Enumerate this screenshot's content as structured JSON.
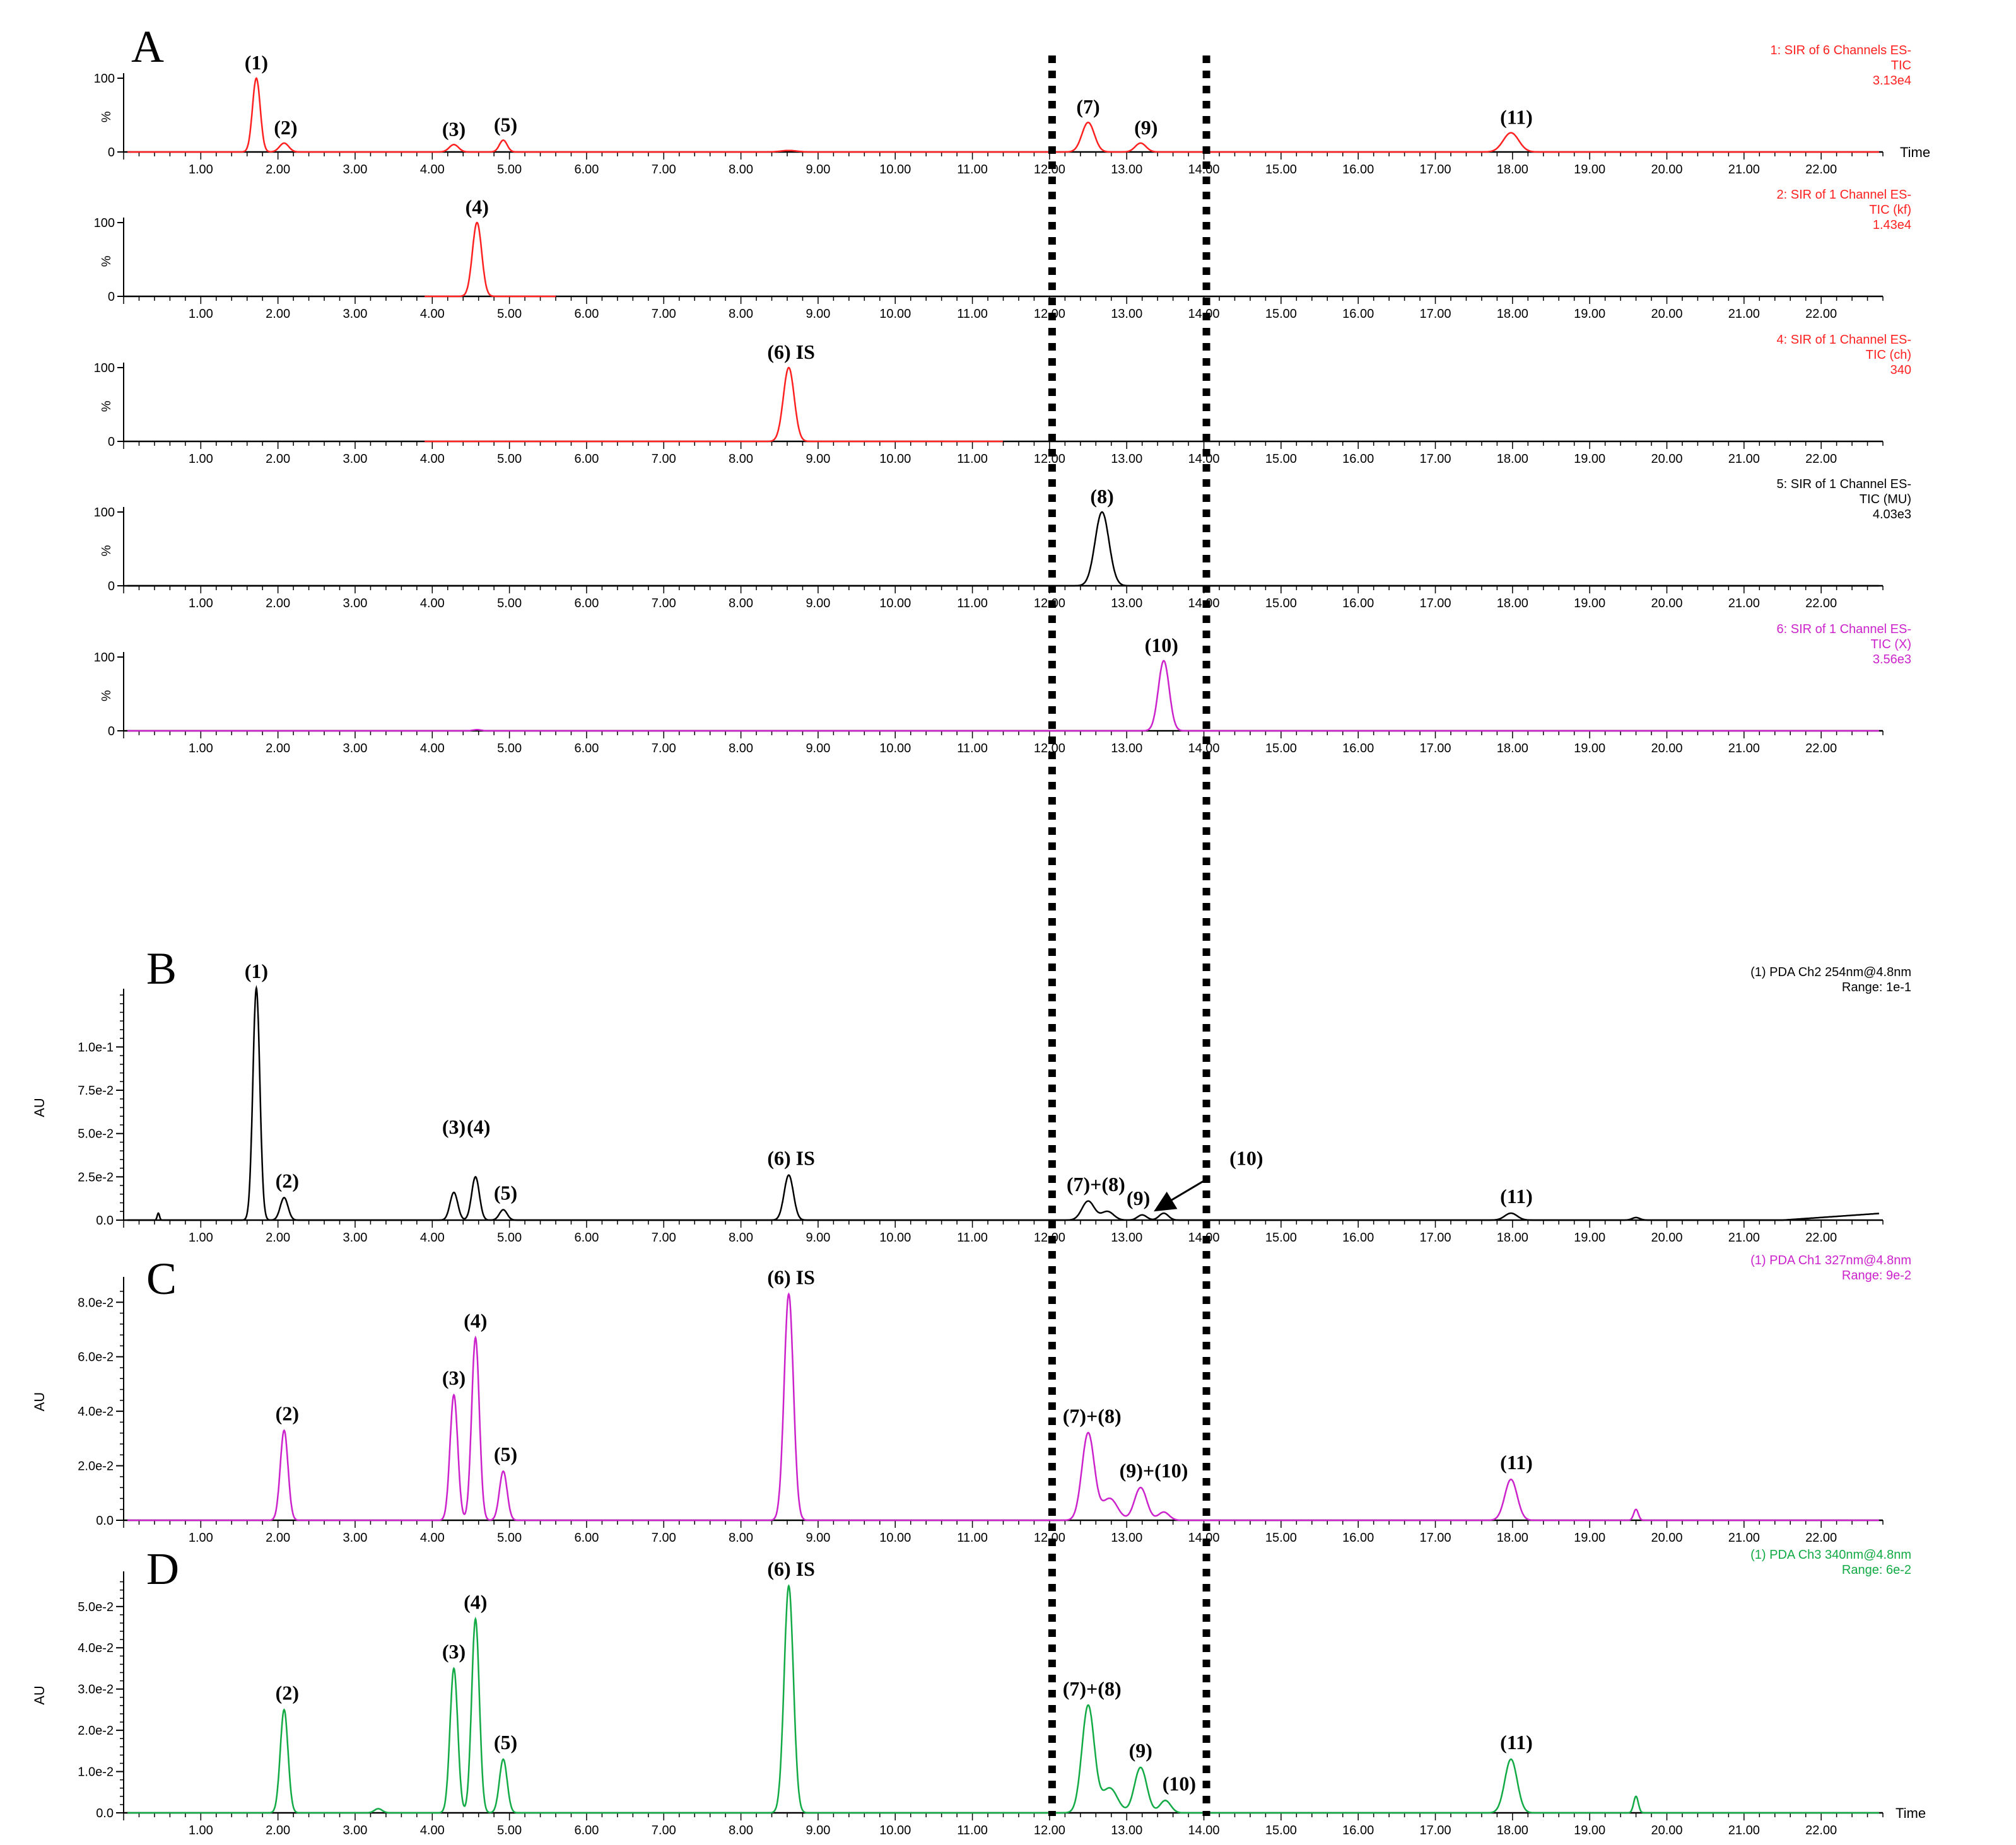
{
  "chart_data": [
    {
      "panel": "A",
      "type": "line",
      "subplots": [
        {
          "id": "A1",
          "color": "#ff2020",
          "legend": [
            "1: SIR of 6 Channels ES-",
            "TIC",
            "3.13e4"
          ],
          "show_time_label": true,
          "time_label": "Time",
          "ylim": [
            0,
            100
          ],
          "yticks": [
            {
              "v": 100,
              "label": "100"
            },
            {
              "v": 0,
              "label": "0"
            }
          ],
          "ylabel_mid": "%",
          "peaks": [
            {
              "t": 1.72,
              "h": 100,
              "w": 0.05
            },
            {
              "t": 2.08,
              "h": 12,
              "w": 0.06
            },
            {
              "t": 4.28,
              "h": 10,
              "w": 0.06
            },
            {
              "t": 4.92,
              "h": 16,
              "w": 0.05
            },
            {
              "t": 8.62,
              "h": 2,
              "w": 0.1
            },
            {
              "t": 12.5,
              "h": 40,
              "w": 0.08
            },
            {
              "t": 13.18,
              "h": 12,
              "w": 0.07
            },
            {
              "t": 17.98,
              "h": 26,
              "w": 0.1
            }
          ],
          "baseline": 0,
          "peak_labels": [
            {
              "t": 1.72,
              "text": "(1)",
              "h": 100
            },
            {
              "t": 2.1,
              "text": "(2)",
              "h": 12
            },
            {
              "t": 4.28,
              "text": "(3)",
              "h": 10
            },
            {
              "t": 4.95,
              "text": "(5)",
              "h": 16
            },
            {
              "t": 12.5,
              "text": "(7)",
              "h": 40
            },
            {
              "t": 13.25,
              "text": "(9)",
              "h": 12
            },
            {
              "t": 18.05,
              "text": "(11)",
              "h": 26
            }
          ]
        },
        {
          "id": "A2",
          "color": "#ff2020",
          "legend": [
            "2: SIR of 1 Channel ES-",
            "TIC (kf)",
            "1.43e4"
          ],
          "show_time_label": false,
          "ylim": [
            0,
            100
          ],
          "yticks": [
            {
              "v": 100,
              "label": "100"
            },
            {
              "v": 0,
              "label": "0"
            }
          ],
          "ylabel_mid": "%",
          "peaks": [
            {
              "t": 4.58,
              "h": 100,
              "w": 0.06
            }
          ],
          "baseline": 0,
          "segment": [
            3.9,
            5.6
          ],
          "peak_labels": [
            {
              "t": 4.58,
              "text": "(4)",
              "h": 100
            }
          ]
        },
        {
          "id": "A3",
          "color": "#ff2020",
          "legend": [
            "4: SIR of 1 Channel ES-",
            "TIC (ch)",
            "340"
          ],
          "show_time_label": false,
          "ylim": [
            0,
            100
          ],
          "yticks": [
            {
              "v": 100,
              "label": "100"
            },
            {
              "v": 0,
              "label": "0"
            }
          ],
          "ylabel_mid": "%",
          "peaks": [
            {
              "t": 8.62,
              "h": 100,
              "w": 0.07
            }
          ],
          "baseline": 0,
          "segment": [
            3.9,
            11.4
          ],
          "peak_labels": [
            {
              "t": 8.65,
              "text": "(6) IS",
              "h": 100
            }
          ]
        },
        {
          "id": "A4",
          "color": "#000000",
          "legend": [
            "5: SIR of 1 Channel ES-",
            "TIC (MU)",
            "4.03e3"
          ],
          "show_time_label": false,
          "ylim": [
            0,
            100
          ],
          "yticks": [
            {
              "v": 100,
              "label": "100"
            },
            {
              "v": 0,
              "label": "0"
            }
          ],
          "ylabel_mid": "%",
          "peaks": [
            {
              "t": 12.68,
              "h": 100,
              "w": 0.09
            }
          ],
          "baseline": 0,
          "peak_labels": [
            {
              "t": 12.68,
              "text": "(8)",
              "h": 100
            }
          ]
        },
        {
          "id": "A5",
          "color": "#cc22cc",
          "legend": [
            "6: SIR of 1 Channel ES-",
            "TIC (X)",
            "3.56e3"
          ],
          "show_time_label": false,
          "ylim": [
            0,
            100
          ],
          "yticks": [
            {
              "v": 100,
              "label": "100"
            },
            {
              "v": 0,
              "label": "0"
            }
          ],
          "ylabel_mid": "%",
          "peaks": [
            {
              "t": 13.48,
              "h": 95,
              "w": 0.07
            },
            {
              "t": 4.58,
              "h": 1.5,
              "w": 0.05
            }
          ],
          "baseline": 0,
          "peak_labels": [
            {
              "t": 13.45,
              "text": "(10)",
              "h": 95
            }
          ]
        }
      ]
    },
    {
      "panel": "B",
      "type": "line",
      "color": "#000000",
      "legend": [
        "(1) PDA Ch2 254nm@4.8nm",
        "Range: 1e-1"
      ],
      "ylabel": "AU",
      "ylim": [
        0,
        0.13
      ],
      "yticks": [
        {
          "v": 0.0,
          "label": "0.0"
        },
        {
          "v": 0.025,
          "label": "2.5e-2"
        },
        {
          "v": 0.05,
          "label": "5.0e-2"
        },
        {
          "v": 0.075,
          "label": "7.5e-2"
        },
        {
          "v": 0.1,
          "label": "1.0e-1"
        }
      ],
      "peaks": [
        {
          "t": 0.45,
          "h": 0.004,
          "w": 0.015
        },
        {
          "t": 1.72,
          "h": 0.134,
          "w": 0.045
        },
        {
          "t": 2.08,
          "h": 0.013,
          "w": 0.05
        },
        {
          "t": 4.28,
          "h": 0.016,
          "w": 0.05
        },
        {
          "t": 4.56,
          "h": 0.025,
          "w": 0.05
        },
        {
          "t": 4.92,
          "h": 0.006,
          "w": 0.05
        },
        {
          "t": 8.62,
          "h": 0.026,
          "w": 0.06
        },
        {
          "t": 12.5,
          "h": 0.011,
          "w": 0.08
        },
        {
          "t": 12.75,
          "h": 0.005,
          "w": 0.08
        },
        {
          "t": 13.2,
          "h": 0.003,
          "w": 0.06
        },
        {
          "t": 13.48,
          "h": 0.004,
          "w": 0.06
        },
        {
          "t": 17.98,
          "h": 0.004,
          "w": 0.08
        },
        {
          "t": 19.6,
          "h": 0.0015,
          "w": 0.05
        }
      ],
      "drift": [
        {
          "t": 21.5,
          "v": 0.0
        },
        {
          "t": 22.8,
          "v": 0.004
        }
      ],
      "peak_labels": [
        {
          "t": 1.72,
          "text": "(1)",
          "v": 0.134
        },
        {
          "t": 2.12,
          "text": "(2)",
          "v": 0.013
        },
        {
          "t": 4.28,
          "text": "(3)",
          "v": 0.044
        },
        {
          "t": 4.6,
          "text": "(4)",
          "v": 0.044
        },
        {
          "t": 4.95,
          "text": "(5)",
          "v": 0.006
        },
        {
          "t": 8.65,
          "text": "(6) IS",
          "v": 0.026
        },
        {
          "t": 12.6,
          "text": "(7)+(8)",
          "v": 0.011
        },
        {
          "t": 13.15,
          "text": "(9)",
          "v": 0.003
        },
        {
          "t": 14.55,
          "text": "(10)",
          "v": 0.026
        }
      ],
      "peak_label_11": {
        "t": 18.05,
        "text": "(11)",
        "v": 0.004
      },
      "arrow": {
        "from_t": 14.05,
        "from_v": 0.024,
        "to_t": 13.35,
        "to_v": 0.005
      }
    },
    {
      "panel": "C",
      "type": "line",
      "color": "#cc22cc",
      "legend": [
        "(1) PDA Ch1 327nm@4.8nm",
        "Range: 9e-2"
      ],
      "ylabel": "AU",
      "ylim": [
        0,
        0.087
      ],
      "yticks": [
        {
          "v": 0.0,
          "label": "0.0"
        },
        {
          "v": 0.02,
          "label": "2.0e-2"
        },
        {
          "v": 0.04,
          "label": "4.0e-2"
        },
        {
          "v": 0.06,
          "label": "6.0e-2"
        },
        {
          "v": 0.08,
          "label": "8.0e-2"
        }
      ],
      "peaks": [
        {
          "t": 2.08,
          "h": 0.033,
          "w": 0.05
        },
        {
          "t": 4.28,
          "h": 0.046,
          "w": 0.05
        },
        {
          "t": 4.56,
          "h": 0.067,
          "w": 0.05
        },
        {
          "t": 4.92,
          "h": 0.018,
          "w": 0.05
        },
        {
          "t": 8.62,
          "h": 0.083,
          "w": 0.06
        },
        {
          "t": 12.5,
          "h": 0.032,
          "w": 0.08
        },
        {
          "t": 12.78,
          "h": 0.008,
          "w": 0.1
        },
        {
          "t": 13.18,
          "h": 0.012,
          "w": 0.08
        },
        {
          "t": 13.48,
          "h": 0.003,
          "w": 0.07
        },
        {
          "t": 17.98,
          "h": 0.015,
          "w": 0.08
        },
        {
          "t": 19.6,
          "h": 0.004,
          "w": 0.03
        }
      ],
      "drift": [],
      "peak_labels": [
        {
          "t": 2.12,
          "text": "(2)",
          "v": 0.033
        },
        {
          "t": 4.28,
          "text": "(3)",
          "v": 0.046
        },
        {
          "t": 4.56,
          "text": "(4)",
          "v": 0.067
        },
        {
          "t": 4.95,
          "text": "(5)",
          "v": 0.018
        },
        {
          "t": 8.65,
          "text": "(6) IS",
          "v": 0.083
        },
        {
          "t": 12.55,
          "text": "(7)+(8)",
          "v": 0.032
        },
        {
          "t": 13.35,
          "text": "(9)+(10)",
          "v": 0.012
        },
        {
          "t": 18.05,
          "text": "(11)",
          "v": 0.015
        }
      ]
    },
    {
      "panel": "D",
      "type": "line",
      "color": "#11aa44",
      "legend": [
        "(1) PDA Ch3 340nm@4.8nm",
        "Range: 6e-2"
      ],
      "ylabel": "AU",
      "ylim": [
        0,
        0.057
      ],
      "yticks": [
        {
          "v": 0.0,
          "label": "0.0"
        },
        {
          "v": 0.01,
          "label": "1.0e-2"
        },
        {
          "v": 0.02,
          "label": "2.0e-2"
        },
        {
          "v": 0.03,
          "label": "3.0e-2"
        },
        {
          "v": 0.04,
          "label": "4.0e-2"
        },
        {
          "v": 0.05,
          "label": "5.0e-2"
        }
      ],
      "show_time_label": true,
      "time_label": "Time",
      "peaks": [
        {
          "t": 2.08,
          "h": 0.025,
          "w": 0.05
        },
        {
          "t": 3.3,
          "h": 0.001,
          "w": 0.05
        },
        {
          "t": 4.28,
          "h": 0.035,
          "w": 0.05
        },
        {
          "t": 4.56,
          "h": 0.047,
          "w": 0.05
        },
        {
          "t": 4.92,
          "h": 0.013,
          "w": 0.05
        },
        {
          "t": 8.62,
          "h": 0.055,
          "w": 0.06
        },
        {
          "t": 12.5,
          "h": 0.026,
          "w": 0.08
        },
        {
          "t": 12.78,
          "h": 0.006,
          "w": 0.1
        },
        {
          "t": 13.18,
          "h": 0.011,
          "w": 0.08
        },
        {
          "t": 13.5,
          "h": 0.003,
          "w": 0.07
        },
        {
          "t": 17.98,
          "h": 0.013,
          "w": 0.08
        },
        {
          "t": 19.6,
          "h": 0.004,
          "w": 0.03
        }
      ],
      "drift": [],
      "peak_labels": [
        {
          "t": 2.12,
          "text": "(2)",
          "v": 0.025
        },
        {
          "t": 4.28,
          "text": "(3)",
          "v": 0.035
        },
        {
          "t": 4.56,
          "text": "(4)",
          "v": 0.047
        },
        {
          "t": 4.95,
          "text": "(5)",
          "v": 0.013
        },
        {
          "t": 8.65,
          "text": "(6) IS",
          "v": 0.055
        },
        {
          "t": 12.55,
          "text": "(7)+(8)",
          "v": 0.026
        },
        {
          "t": 13.18,
          "text": "(9)",
          "v": 0.011
        },
        {
          "t": 13.68,
          "text": "(10)",
          "v": 0.003
        },
        {
          "t": 18.05,
          "text": "(11)",
          "v": 0.013
        }
      ]
    }
  ],
  "x_axis": {
    "xlim": [
      0,
      22.8
    ],
    "tick_labels": [
      "1.00",
      "2.00",
      "3.00",
      "4.00",
      "5.00",
      "6.00",
      "7.00",
      "8.00",
      "9.00",
      "10.00",
      "11.00",
      "12.00",
      "13.00",
      "14.00",
      "15.00",
      "16.00",
      "17.00",
      "18.00",
      "19.00",
      "20.00",
      "21.00",
      "22.00"
    ]
  },
  "dashed_markers": [
    12.0,
    14.0
  ],
  "panel_letters": [
    "A",
    "B",
    "C",
    "D"
  ]
}
